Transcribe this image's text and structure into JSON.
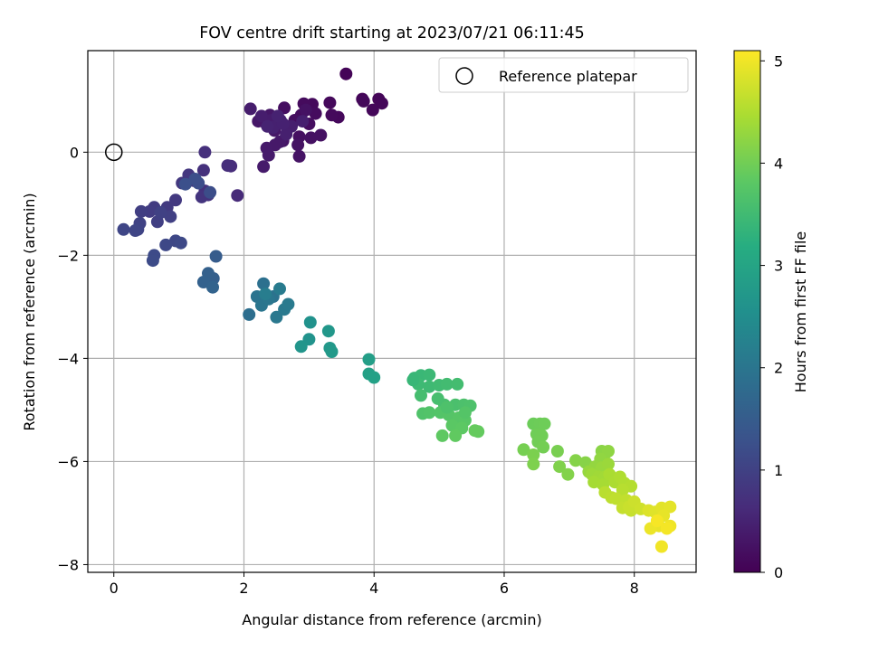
{
  "chart_data": {
    "type": "scatter",
    "title": "FOV centre drift starting at 2023/07/21 06:11:45",
    "xlabel": "Angular distance from reference (arcmin)",
    "ylabel": "Rotation from reference (arcmin)",
    "xlim": [
      -0.4,
      8.95
    ],
    "ylim": [
      -8.15,
      1.97
    ],
    "xticks": [
      0,
      2,
      4,
      6,
      8
    ],
    "yticks": [
      -8,
      -6,
      -4,
      -2,
      0
    ],
    "xtick_labels": [
      "0",
      "2",
      "4",
      "6",
      "8"
    ],
    "ytick_labels": [
      "−8",
      "−6",
      "−4",
      "−2",
      "0"
    ],
    "grid": true,
    "legend": {
      "placement": "top-right",
      "entries": [
        {
          "label": "Reference platepar",
          "marker": "open-circle"
        }
      ]
    },
    "colormap": "viridis",
    "colorbar": {
      "label": "Hours from first FF file",
      "range": [
        0,
        5.1
      ],
      "ticks": [
        0,
        1,
        2,
        3,
        4,
        5
      ],
      "tick_labels": [
        "0",
        "1",
        "2",
        "3",
        "4",
        "5"
      ]
    },
    "reference_point": {
      "x": 0,
      "y": 0
    },
    "columns": [
      "x_arcmin",
      "y_arcmin",
      "hours"
    ],
    "points": [
      [
        3.57,
        1.52,
        0.05
      ],
      [
        3.82,
        1.03,
        0.06
      ],
      [
        4.07,
        1.03,
        0.07
      ],
      [
        4.12,
        0.95,
        0.08
      ],
      [
        3.98,
        0.82,
        0.09
      ],
      [
        3.84,
        0.99,
        0.1
      ],
      [
        3.45,
        0.68,
        0.11
      ],
      [
        3.32,
        0.96,
        0.12
      ],
      [
        3.35,
        0.72,
        0.13
      ],
      [
        3.05,
        0.93,
        0.14
      ],
      [
        2.92,
        0.94,
        0.15
      ],
      [
        3.1,
        0.75,
        0.16
      ],
      [
        2.88,
        0.72,
        0.17
      ],
      [
        3.0,
        0.55,
        0.18
      ],
      [
        2.78,
        0.62,
        0.19
      ],
      [
        2.62,
        0.86,
        0.2
      ],
      [
        2.7,
        0.5,
        0.21
      ],
      [
        2.85,
        0.3,
        0.22
      ],
      [
        3.03,
        0.28,
        0.23
      ],
      [
        3.18,
        0.33,
        0.24
      ],
      [
        2.95,
        0.82,
        0.25
      ],
      [
        2.83,
        0.14,
        0.26
      ],
      [
        2.85,
        -0.08,
        0.27
      ],
      [
        2.6,
        0.22,
        0.28
      ],
      [
        2.5,
        0.62,
        0.3
      ],
      [
        2.4,
        0.72,
        0.31
      ],
      [
        2.32,
        0.58,
        0.32
      ],
      [
        2.22,
        0.6,
        0.33
      ],
      [
        2.47,
        0.42,
        0.34
      ],
      [
        2.55,
        0.2,
        0.35
      ],
      [
        2.48,
        0.14,
        0.36
      ],
      [
        2.35,
        0.08,
        0.37
      ],
      [
        2.38,
        -0.06,
        0.38
      ],
      [
        2.3,
        -0.28,
        0.39
      ],
      [
        2.42,
        0.62,
        0.4
      ],
      [
        2.1,
        0.84,
        0.41
      ],
      [
        2.27,
        0.7,
        0.42
      ],
      [
        2.56,
        0.62,
        0.43
      ],
      [
        2.73,
        0.5,
        0.44
      ],
      [
        2.9,
        0.6,
        0.45
      ],
      [
        2.65,
        0.35,
        0.46
      ],
      [
        2.45,
        0.48,
        0.47
      ],
      [
        2.6,
        0.55,
        0.48
      ],
      [
        2.52,
        0.7,
        0.49
      ],
      [
        2.36,
        0.5,
        0.5
      ],
      [
        1.9,
        -0.84,
        0.62
      ],
      [
        1.8,
        -0.27,
        0.65
      ],
      [
        1.75,
        -0.26,
        0.67
      ],
      [
        1.4,
        0.0,
        0.7
      ],
      [
        1.38,
        -0.35,
        0.72
      ],
      [
        1.4,
        -0.75,
        0.74
      ],
      [
        1.45,
        -0.83,
        0.76
      ],
      [
        1.35,
        -0.87,
        0.78
      ],
      [
        1.22,
        -0.55,
        0.8
      ],
      [
        1.15,
        -0.44,
        0.82
      ],
      [
        1.05,
        -0.6,
        0.84
      ],
      [
        0.95,
        -0.93,
        0.86
      ],
      [
        0.82,
        -1.07,
        0.88
      ],
      [
        0.62,
        -1.07,
        0.9
      ],
      [
        0.55,
        -1.15,
        0.92
      ],
      [
        0.42,
        -1.15,
        0.94
      ],
      [
        0.67,
        -1.35,
        0.96
      ],
      [
        0.87,
        -1.25,
        0.98
      ],
      [
        0.72,
        -1.17,
        1.0
      ],
      [
        0.4,
        -1.38,
        1.02
      ],
      [
        0.37,
        -1.5,
        1.04
      ],
      [
        0.33,
        -1.52,
        1.06
      ],
      [
        0.15,
        -1.5,
        1.08
      ],
      [
        0.95,
        -1.72,
        1.1
      ],
      [
        0.8,
        -1.8,
        1.12
      ],
      [
        1.03,
        -1.76,
        1.14
      ],
      [
        0.62,
        -2.0,
        1.16
      ],
      [
        0.6,
        -2.1,
        1.18
      ],
      [
        1.48,
        -0.78,
        1.2
      ],
      [
        1.3,
        -0.6,
        1.22
      ],
      [
        1.25,
        -0.52,
        1.24
      ],
      [
        1.1,
        -0.62,
        1.26
      ],
      [
        1.57,
        -2.02,
        1.5
      ],
      [
        1.53,
        -2.45,
        1.55
      ],
      [
        1.45,
        -2.35,
        1.58
      ],
      [
        1.38,
        -2.52,
        1.6
      ],
      [
        1.52,
        -2.62,
        1.63
      ],
      [
        2.08,
        -3.15,
        1.85
      ],
      [
        2.3,
        -2.55,
        1.9
      ],
      [
        2.45,
        -2.8,
        1.93
      ],
      [
        2.2,
        -2.8,
        1.96
      ],
      [
        2.27,
        -2.97,
        2.0
      ],
      [
        2.38,
        -2.85,
        2.02
      ],
      [
        2.5,
        -3.2,
        2.05
      ],
      [
        2.62,
        -3.05,
        2.08
      ],
      [
        2.68,
        -2.95,
        2.1
      ],
      [
        2.55,
        -2.65,
        2.12
      ],
      [
        2.33,
        -2.75,
        2.15
      ],
      [
        3.02,
        -3.3,
        2.6
      ],
      [
        3.0,
        -3.63,
        2.62
      ],
      [
        2.88,
        -3.77,
        2.65
      ],
      [
        3.3,
        -3.47,
        2.7
      ],
      [
        3.32,
        -3.8,
        2.72
      ],
      [
        3.35,
        -3.87,
        2.74
      ],
      [
        3.92,
        -4.02,
        2.85
      ],
      [
        3.92,
        -4.3,
        2.9
      ],
      [
        4.0,
        -4.37,
        2.92
      ],
      [
        4.62,
        -4.38,
        3.4
      ],
      [
        4.72,
        -4.33,
        3.42
      ],
      [
        4.85,
        -4.32,
        3.44
      ],
      [
        4.68,
        -4.5,
        3.46
      ],
      [
        4.85,
        -4.55,
        3.48
      ],
      [
        5.0,
        -4.52,
        3.5
      ],
      [
        5.12,
        -4.5,
        3.52
      ],
      [
        5.28,
        -4.5,
        3.54
      ],
      [
        4.72,
        -4.72,
        3.56
      ],
      [
        4.98,
        -4.78,
        3.58
      ],
      [
        5.08,
        -4.9,
        3.6
      ],
      [
        5.25,
        -4.9,
        3.62
      ],
      [
        5.38,
        -4.9,
        3.64
      ],
      [
        5.48,
        -4.92,
        3.66
      ],
      [
        4.75,
        -5.07,
        3.68
      ],
      [
        4.85,
        -5.05,
        3.7
      ],
      [
        5.02,
        -5.05,
        3.72
      ],
      [
        5.15,
        -5.1,
        3.74
      ],
      [
        5.3,
        -5.15,
        3.76
      ],
      [
        5.4,
        -5.2,
        3.78
      ],
      [
        5.2,
        -5.3,
        3.8
      ],
      [
        5.35,
        -5.35,
        3.82
      ],
      [
        5.05,
        -5.5,
        3.84
      ],
      [
        5.25,
        -5.5,
        3.86
      ],
      [
        5.6,
        -5.42,
        3.88
      ],
      [
        5.55,
        -5.4,
        3.9
      ],
      [
        4.6,
        -4.42,
        3.41
      ],
      [
        5.12,
        -4.95,
        3.66
      ],
      [
        5.4,
        -5.05,
        3.73
      ],
      [
        6.45,
        -5.27,
        3.95
      ],
      [
        6.55,
        -5.27,
        3.96
      ],
      [
        6.62,
        -5.27,
        3.97
      ],
      [
        6.5,
        -5.47,
        3.98
      ],
      [
        6.58,
        -5.5,
        3.99
      ],
      [
        6.52,
        -5.62,
        4.0
      ],
      [
        6.6,
        -5.72,
        4.02
      ],
      [
        6.3,
        -5.77,
        4.04
      ],
      [
        6.82,
        -5.8,
        4.06
      ],
      [
        6.45,
        -5.87,
        4.08
      ],
      [
        6.45,
        -6.05,
        4.1
      ],
      [
        6.85,
        -6.1,
        4.12
      ],
      [
        6.98,
        -6.25,
        4.14
      ],
      [
        7.1,
        -5.98,
        4.16
      ],
      [
        7.25,
        -6.02,
        4.18
      ],
      [
        7.5,
        -5.8,
        4.2
      ],
      [
        7.55,
        -5.85,
        4.22
      ],
      [
        7.6,
        -5.8,
        4.24
      ],
      [
        7.48,
        -5.95,
        4.26
      ],
      [
        7.4,
        -6.1,
        4.28
      ],
      [
        7.3,
        -6.2,
        4.3
      ],
      [
        7.5,
        -6.12,
        4.32
      ],
      [
        7.6,
        -6.05,
        4.34
      ],
      [
        7.35,
        -6.25,
        4.36
      ],
      [
        7.45,
        -6.3,
        4.38
      ],
      [
        7.55,
        -6.3,
        4.4
      ],
      [
        7.38,
        -6.4,
        4.42
      ],
      [
        7.52,
        -6.45,
        4.44
      ],
      [
        7.62,
        -6.25,
        4.46
      ],
      [
        7.7,
        -6.4,
        4.48
      ],
      [
        7.78,
        -6.3,
        4.5
      ],
      [
        7.85,
        -6.42,
        4.52
      ],
      [
        7.95,
        -6.48,
        4.54
      ],
      [
        7.82,
        -6.55,
        4.56
      ],
      [
        7.55,
        -6.6,
        4.58
      ],
      [
        7.65,
        -6.7,
        4.6
      ],
      [
        7.72,
        -6.72,
        4.62
      ],
      [
        7.88,
        -6.75,
        4.64
      ],
      [
        7.82,
        -6.9,
        4.66
      ],
      [
        7.95,
        -6.95,
        4.68
      ],
      [
        7.92,
        -6.88,
        4.7
      ],
      [
        8.0,
        -6.78,
        4.72
      ],
      [
        8.1,
        -6.92,
        4.74
      ],
      [
        8.22,
        -6.95,
        4.85
      ],
      [
        8.32,
        -6.98,
        4.87
      ],
      [
        8.42,
        -6.9,
        4.89
      ],
      [
        8.55,
        -6.88,
        4.91
      ],
      [
        8.45,
        -7.05,
        4.93
      ],
      [
        8.38,
        -7.25,
        4.95
      ],
      [
        8.25,
        -7.3,
        4.97
      ],
      [
        8.55,
        -7.25,
        4.99
      ],
      [
        8.42,
        -7.65,
        5.01
      ],
      [
        8.5,
        -7.3,
        5.03
      ],
      [
        8.35,
        -7.15,
        5.05
      ]
    ]
  }
}
